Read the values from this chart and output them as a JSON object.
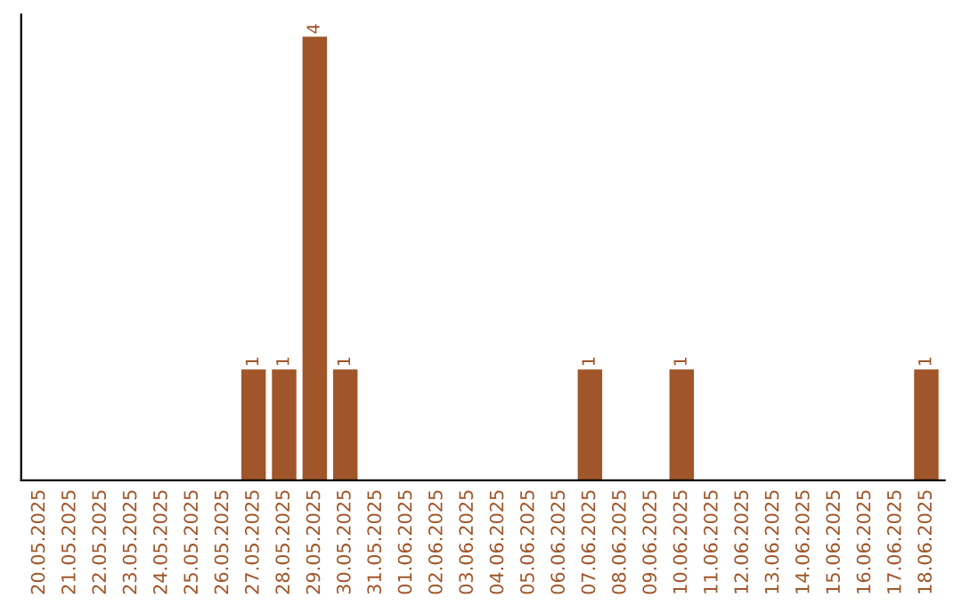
{
  "chart_data": {
    "type": "bar",
    "categories": [
      "20.05.2025",
      "21.05.2025",
      "22.05.2025",
      "23.05.2025",
      "24.05.2025",
      "25.05.2025",
      "26.05.2025",
      "27.05.2025",
      "28.05.2025",
      "29.05.2025",
      "30.05.2025",
      "31.05.2025",
      "01.06.2025",
      "02.06.2025",
      "03.06.2025",
      "04.06.2025",
      "05.06.2025",
      "06.06.2025",
      "07.06.2025",
      "08.06.2025",
      "09.06.2025",
      "10.06.2025",
      "11.06.2025",
      "12.06.2025",
      "13.06.2025",
      "14.06.2025",
      "15.06.2025",
      "16.06.2025",
      "17.06.2025",
      "18.06.2025"
    ],
    "values": [
      0,
      0,
      0,
      0,
      0,
      0,
      0,
      1,
      1,
      4,
      1,
      0,
      0,
      0,
      0,
      0,
      0,
      0,
      1,
      0,
      0,
      1,
      0,
      0,
      0,
      0,
      0,
      0,
      0,
      1
    ],
    "value_labels": [
      null,
      null,
      null,
      null,
      null,
      null,
      null,
      "1",
      "1",
      "4",
      "1",
      null,
      null,
      null,
      null,
      null,
      null,
      null,
      "1",
      null,
      null,
      "1",
      null,
      null,
      null,
      null,
      null,
      null,
      null,
      "1"
    ],
    "color": "#a0562a",
    "grid": false,
    "legend": false,
    "tick_labels": "x"
  }
}
